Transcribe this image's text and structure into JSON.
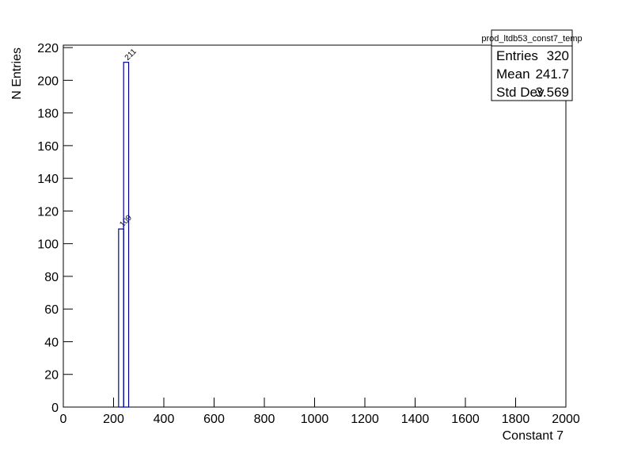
{
  "chart_data": {
    "type": "histogram",
    "x_label": "Constant 7",
    "y_label": "N Entries",
    "bins": [
      220,
      240,
      260
    ],
    "counts": [
      109,
      211
    ],
    "color": "#000099",
    "xlim": [
      0,
      2000
    ],
    "xticks": [
      0,
      200,
      400,
      600,
      800,
      1000,
      1200,
      1400,
      1600,
      1800,
      2000
    ],
    "ylim": [
      0,
      221.5
    ],
    "yticks": [
      0,
      20,
      40,
      60,
      80,
      100,
      120,
      140,
      160,
      180,
      200,
      220
    ],
    "stats": {
      "title": "prod_ltdb53_const7_temp",
      "rows": [
        {
          "label": "Entries",
          "value": 320
        },
        {
          "label": "Mean",
          "value": 241.7
        },
        {
          "label": "Std Dev",
          "value": 3.569
        }
      ]
    }
  }
}
